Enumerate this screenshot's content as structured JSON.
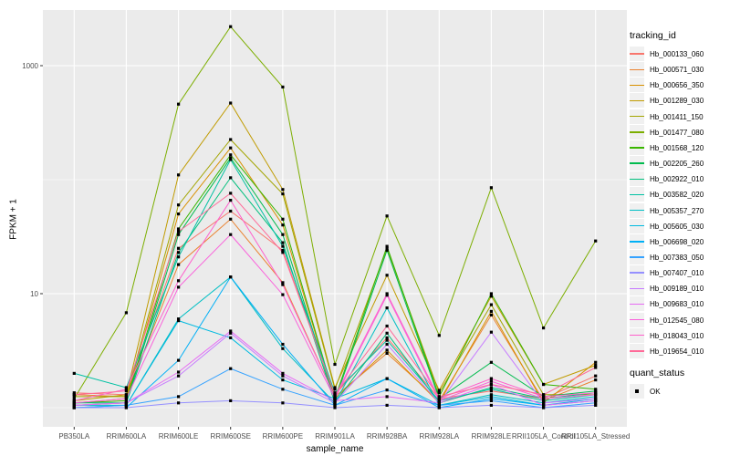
{
  "chart_data": {
    "type": "line",
    "xlabel": "sample_name",
    "ylabel": "FPKM + 1",
    "y_scale": "log10",
    "y_ticks": [
      {
        "label": "1000",
        "value": 1000
      },
      {
        "label": "10",
        "value": 10
      }
    ],
    "y_gridlines_major": [
      10,
      1000
    ],
    "y_gridlines_minor": [
      1,
      100
    ],
    "ylim_log": [
      0.9,
      3.5
    ],
    "grid": true,
    "panel_bg": "#EBEBEB",
    "grid_color": "#FFFFFF",
    "point_color": "#000000",
    "categories": [
      "PB350LA",
      "RRIM600LA",
      "RRIM600LE",
      "RRIM600SE",
      "RRIM600PE",
      "RRIM901LA",
      "RRIM928BA",
      "RRIM928LA",
      "RRIM928LE",
      "RRII105LA_Control",
      "RRII105LA_Stressed"
    ],
    "legend": {
      "color_title": "tracking_id",
      "shape_title": "quant_status",
      "shape_label": "OK"
    },
    "series": [
      {
        "name": "Hb_000133_060",
        "color": "#F8766D",
        "values": [
          1.35,
          1.3,
          25,
          53,
          24,
          1.3,
          4.1,
          1.2,
          1.4,
          1.2,
          1.9
        ]
      },
      {
        "name": "Hb_000571_030",
        "color": "#EA8331",
        "values": [
          1.3,
          1.25,
          18,
          45,
          12.5,
          1.25,
          3.0,
          1.15,
          6.5,
          1.15,
          1.75
        ]
      },
      {
        "name": "Hb_000656_350",
        "color": "#D89000",
        "values": [
          1.1,
          1.2,
          50,
          190,
          40,
          1.2,
          3.2,
          1.1,
          7,
          1.1,
          2.5
        ]
      },
      {
        "name": "Hb_001289_030",
        "color": "#C09B00",
        "values": [
          1.15,
          1.3,
          110,
          470,
          82,
          1.5,
          14.5,
          1.42,
          9.5,
          1.6,
          2.35
        ]
      },
      {
        "name": "Hb_001411_150",
        "color": "#A3A500",
        "values": [
          1.25,
          1.25,
          60,
          225,
          75,
          1.45,
          25,
          1.35,
          8,
          1.3,
          1.3
        ]
      },
      {
        "name": "Hb_001477_080",
        "color": "#7CAE00",
        "values": [
          1.2,
          6.8,
          460,
          2200,
          650,
          2.4,
          48,
          4.3,
          85,
          5.0,
          29
        ]
      },
      {
        "name": "Hb_001568_120",
        "color": "#39B600",
        "values": [
          1.1,
          1.15,
          37,
          165,
          45,
          1.2,
          26,
          1.25,
          10,
          1.6,
          1.45
        ]
      },
      {
        "name": "Hb_002205_260",
        "color": "#00BB4E",
        "values": [
          1.05,
          1.1,
          33,
          155,
          33,
          1.15,
          24,
          1.2,
          2.5,
          1.25,
          1.4
        ]
      },
      {
        "name": "Hb_002922_010",
        "color": "#00BF7D",
        "values": [
          1.1,
          1.1,
          23,
          104,
          28,
          1.1,
          4.5,
          1.1,
          1.5,
          1.2,
          1.35
        ]
      },
      {
        "name": "Hb_003582_020",
        "color": "#00C1A3",
        "values": [
          2.0,
          1.5,
          21,
          150,
          26,
          1.35,
          3.9,
          1.15,
          1.45,
          1.15,
          1.3
        ]
      },
      {
        "name": "Hb_005357_270",
        "color": "#00BFC4",
        "values": [
          1.05,
          1.05,
          6.0,
          14,
          3.3,
          1.1,
          7.5,
          1.05,
          1.3,
          1.1,
          1.25
        ]
      },
      {
        "name": "Hb_005605_030",
        "color": "#00BAE0",
        "values": [
          1.0,
          1.05,
          5.8,
          4.1,
          1.75,
          1.2,
          1.8,
          1.05,
          1.25,
          1.05,
          1.2
        ]
      },
      {
        "name": "Hb_006698_020",
        "color": "#00B0F6",
        "values": [
          1.0,
          1.0,
          2.6,
          14,
          3.6,
          1.05,
          1.8,
          1.0,
          1.2,
          1.05,
          1.15
        ]
      },
      {
        "name": "Hb_007383_050",
        "color": "#35A2FF",
        "values": [
          1.0,
          1.05,
          1.25,
          2.2,
          1.45,
          1.05,
          1.43,
          1.05,
          1.15,
          1.0,
          1.1
        ]
      },
      {
        "name": "Hb_007407_010",
        "color": "#9590FF",
        "values": [
          1.0,
          1.0,
          1.1,
          1.15,
          1.1,
          1.0,
          1.05,
          1.0,
          1.05,
          1.0,
          1.05
        ]
      },
      {
        "name": "Hb_009189_010",
        "color": "#C77CFF",
        "values": [
          1.05,
          1.1,
          1.9,
          4.5,
          1.9,
          1.1,
          3.6,
          1.1,
          4.6,
          1.1,
          1.2
        ]
      },
      {
        "name": "Hb_009683_010",
        "color": "#E76BF3",
        "values": [
          1.05,
          1.1,
          2.05,
          4.7,
          2.0,
          1.15,
          1.25,
          1.1,
          1.6,
          1.05,
          1.15
        ]
      },
      {
        "name": "Hb_012545_080",
        "color": "#FA62DB",
        "values": [
          1.1,
          1.2,
          11.4,
          33,
          9.8,
          1.2,
          9.7,
          1.15,
          1.7,
          1.2,
          1.3
        ]
      },
      {
        "name": "Hb_018043_010",
        "color": "#FF61CC",
        "values": [
          1.15,
          1.45,
          13,
          66,
          12,
          1.25,
          10,
          1.2,
          1.8,
          1.25,
          1.35
        ]
      },
      {
        "name": "Hb_019654_010",
        "color": "#FF6A98",
        "values": [
          1.3,
          1.4,
          35,
          76,
          23,
          1.3,
          5.2,
          1.25,
          1.6,
          1.3,
          2.25
        ]
      }
    ]
  }
}
